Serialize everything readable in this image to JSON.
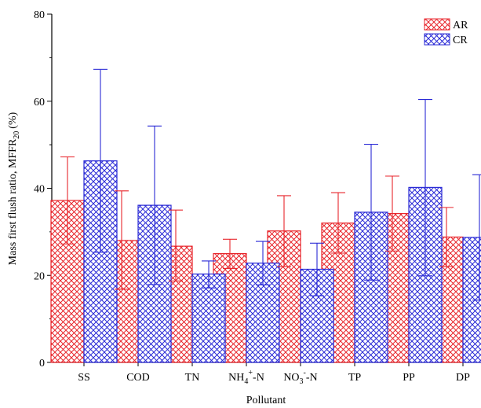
{
  "chart_data": {
    "type": "bar",
    "title": "",
    "xlabel": "Pollutant",
    "ylabel": "Mass first flush ratio, MFFR",
    "ylabel_sub": "20",
    "ylabel_unit": "(%)",
    "ylim": [
      0,
      80
    ],
    "yticks": [
      0,
      20,
      40,
      60,
      80
    ],
    "grid": false,
    "legend_placement": "top-right",
    "categories": [
      {
        "base": "SS",
        "sup": "",
        "sub": "",
        "tail": ""
      },
      {
        "base": "COD",
        "sup": "",
        "sub": "",
        "tail": ""
      },
      {
        "base": "TN",
        "sup": "",
        "sub": "",
        "tail": ""
      },
      {
        "base": "NH",
        "sub": "4",
        "sup": "+",
        "tail": "-N"
      },
      {
        "base": "NO",
        "sub": "3",
        "sup": "-",
        "tail": "-N"
      },
      {
        "base": "TP",
        "sup": "",
        "sub": "",
        "tail": ""
      },
      {
        "base": "PP",
        "sup": "",
        "sub": "",
        "tail": ""
      },
      {
        "base": "DP",
        "sup": "",
        "sub": "",
        "tail": ""
      }
    ],
    "series": [
      {
        "name": "AR",
        "color": "#e8262c",
        "values": [
          37.2,
          28.0,
          26.7,
          25.0,
          30.2,
          32.0,
          34.2,
          28.8
        ],
        "err_low": [
          27.2,
          16.8,
          18.7,
          21.6,
          22.0,
          25.1,
          25.6,
          22.0
        ],
        "err_high": [
          47.2,
          39.4,
          35.0,
          28.3,
          38.3,
          39.0,
          42.8,
          35.6
        ]
      },
      {
        "name": "CR",
        "color": "#2b2bd6",
        "values": [
          46.3,
          36.1,
          20.3,
          22.8,
          21.4,
          34.5,
          40.2,
          28.7
        ],
        "err_low": [
          25.3,
          17.9,
          17.1,
          17.8,
          15.3,
          18.9,
          19.9,
          14.3
        ],
        "err_high": [
          67.3,
          54.3,
          23.3,
          27.8,
          27.4,
          50.1,
          60.4,
          43.1
        ]
      }
    ]
  }
}
